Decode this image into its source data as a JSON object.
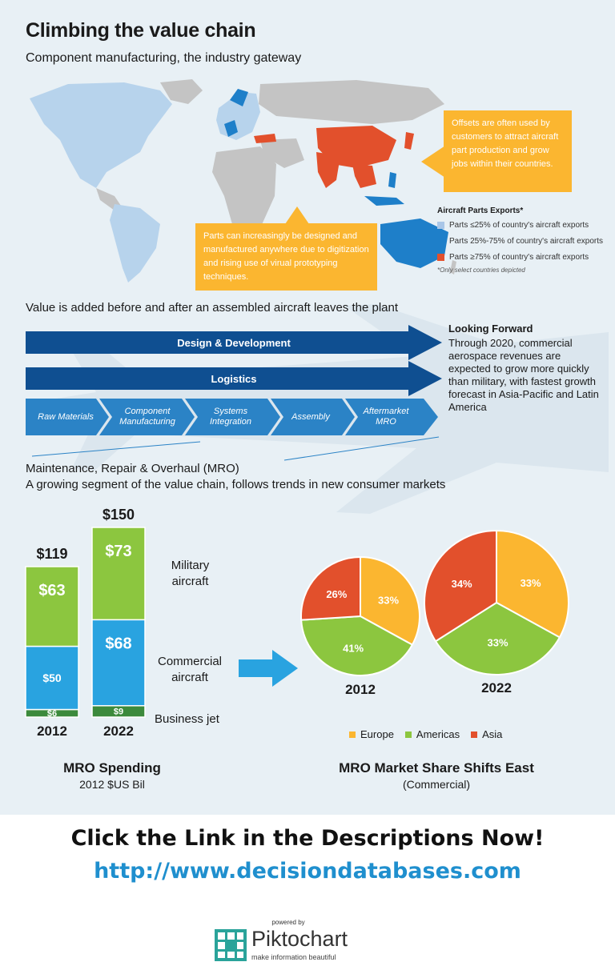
{
  "title": "Climbing the value chain",
  "subtitle": "Component manufacturing, the industry gateway",
  "callouts": {
    "offsets": "Offsets are often used by customers to attract aircraft part production and grow jobs within their countries.",
    "design": "Parts can increasingly be designed and manufactured anywhere due to digitization and rising use of virual prototyping techniques."
  },
  "map_legend": {
    "title": "Aircraft Parts Exports*",
    "items": [
      {
        "label": "Parts ≤25% of country's aircraft exports",
        "color": "#a9c6e8"
      },
      {
        "label": "Parts 25%-75% of country's aircraft exports",
        "color": "#1e7fc9"
      },
      {
        "label": "Parts ≥75% of country's aircraft exports",
        "color": "#e2502c"
      }
    ],
    "note": "*Only select countries depicted"
  },
  "value_chain": {
    "heading": "Value is added before and after an assembled aircraft leaves the plant",
    "arrows": [
      "Design & Development",
      "Logistics"
    ],
    "stages": [
      "Raw Materials",
      "Component Manufacturing",
      "Systems Integration",
      "Assembly",
      "Aftermarket MRO"
    ]
  },
  "looking_forward": {
    "title": "Looking Forward",
    "text": "Through 2020, commercial aerospace revenues are expected to grow more quickly than military, with fastest growth forecast in Asia-Pacific and Latin America"
  },
  "mro": {
    "heading": "Maintenance, Repair & Overhaul (MRO)",
    "subheading": "A growing segment of the value chain, follows trends in new consumer markets"
  },
  "chart_data": [
    {
      "type": "bar",
      "stacked": true,
      "title": "MRO Spending",
      "subtitle": "2012 $US Bil",
      "categories": [
        "2012",
        "2022"
      ],
      "totals": [
        "$119",
        "$150"
      ],
      "series": [
        {
          "name": "Business jet",
          "values": [
            6,
            9
          ],
          "labels": [
            "$6",
            "$9"
          ],
          "color": "#3c8a3c"
        },
        {
          "name": "Commercial aircraft",
          "values": [
            50,
            68
          ],
          "labels": [
            "$50",
            "$68"
          ],
          "color": "#29a3e0"
        },
        {
          "name": "Military aircraft",
          "values": [
            63,
            73
          ],
          "labels": [
            "$63",
            "$73"
          ],
          "color": "#8cc63f"
        }
      ]
    },
    {
      "type": "pie",
      "title": "MRO Market Share Shifts East",
      "subtitle": "(Commercial)",
      "legend": [
        "Europe",
        "Americas",
        "Asia"
      ],
      "colors": {
        "Europe": "#fbb630",
        "Americas": "#8cc63f",
        "Asia": "#e2502c"
      },
      "pies": [
        {
          "label": "2012",
          "slices": [
            {
              "name": "Europe",
              "value": 33,
              "label": "33%"
            },
            {
              "name": "Americas",
              "value": 41,
              "label": "41%"
            },
            {
              "name": "Asia",
              "value": 26,
              "label": "26%"
            }
          ]
        },
        {
          "label": "2022",
          "slices": [
            {
              "name": "Europe",
              "value": 33,
              "label": "33%"
            },
            {
              "name": "Americas",
              "value": 33,
              "label": "33%"
            },
            {
              "name": "Asia",
              "value": 34,
              "label": "34%"
            }
          ]
        }
      ]
    }
  ],
  "cta": {
    "line1": "Click the Link in the Descriptions Now!",
    "line2": "http://www.decisiondatabases.com"
  },
  "footer": {
    "powered_by": "powered by",
    "brand_prefix": "Pikto",
    "brand_suffix": "chart",
    "tagline": "make information beautiful"
  },
  "colors": {
    "navy_arrow": "#0f4f91",
    "chevron": "#2b83c6",
    "cta_text": "#111111",
    "link": "#1f8fce"
  }
}
